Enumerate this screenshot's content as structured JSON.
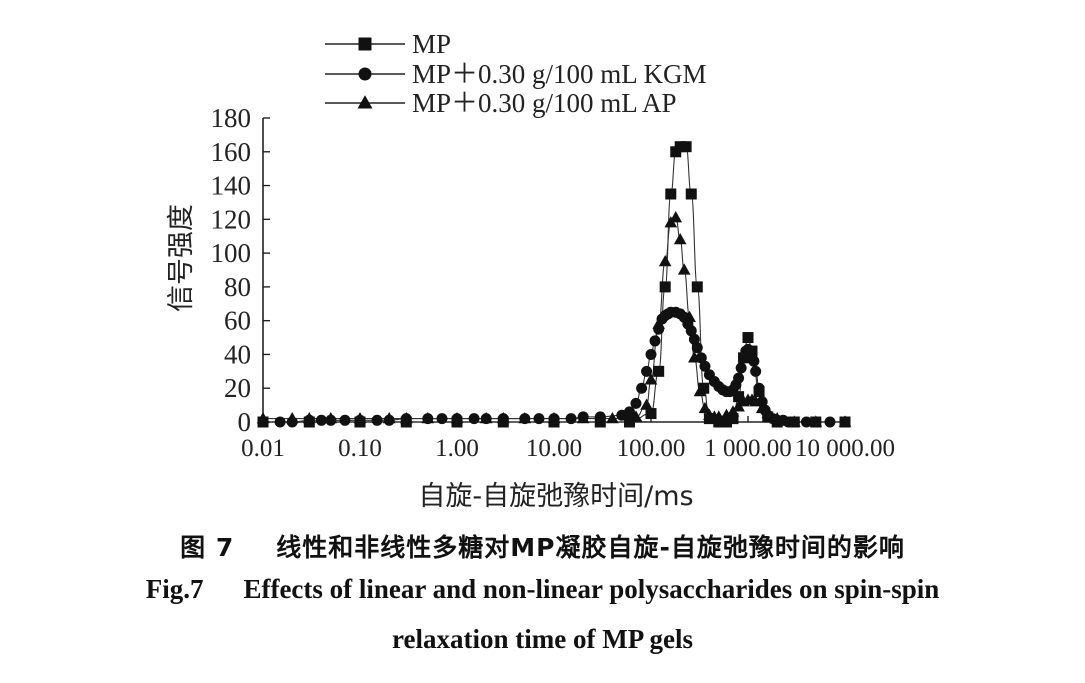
{
  "chart_data": {
    "type": "line",
    "x_scale": "log",
    "xlabel": "自旋-自旋弛豫时间/ms",
    "ylabel": "信号强度",
    "xlim": [
      0.01,
      10000
    ],
    "ylim": [
      0,
      180
    ],
    "x_tick_values": [
      0.01,
      0.1,
      1,
      10,
      100,
      1000,
      10000
    ],
    "x_tick_labels": [
      "0.01",
      "0.10",
      "1.00",
      "10.00",
      "100.00",
      "1 000.00",
      "10 000.00"
    ],
    "y_ticks": [
      0,
      20,
      40,
      60,
      80,
      100,
      120,
      140,
      160,
      180
    ],
    "legend_position": "top",
    "series": [
      {
        "name": "MP",
        "marker": "square",
        "x": [
          0.01,
          0.03,
          0.1,
          0.3,
          1,
          3,
          10,
          30,
          60,
          100,
          120,
          140,
          160,
          180,
          200,
          230,
          260,
          300,
          350,
          400,
          500,
          600,
          700,
          800,
          900,
          1000,
          1100,
          1300,
          1600,
          2000,
          3000,
          5000,
          10000
        ],
        "y": [
          0,
          0,
          0,
          0,
          0,
          0,
          0,
          0,
          0,
          5,
          30,
          80,
          135,
          160,
          163,
          163,
          135,
          80,
          20,
          2,
          0,
          0,
          2,
          15,
          38,
          50,
          42,
          18,
          3,
          0,
          0,
          0,
          0
        ]
      },
      {
        "name": "MP＋0.30 g/100 mL KGM",
        "marker": "circle",
        "x": [
          0.01,
          0.015,
          0.02,
          0.03,
          0.04,
          0.05,
          0.07,
          0.1,
          0.15,
          0.2,
          0.3,
          0.5,
          0.7,
          1,
          1.5,
          2,
          3,
          5,
          7,
          10,
          15,
          20,
          30,
          50,
          60,
          70,
          80,
          90,
          100,
          110,
          120,
          130,
          140,
          150,
          160,
          180,
          200,
          220,
          240,
          260,
          280,
          300,
          330,
          360,
          400,
          450,
          500,
          550,
          600,
          650,
          700,
          750,
          800,
          850,
          900,
          950,
          1000,
          1050,
          1100,
          1150,
          1200,
          1300,
          1400,
          1500,
          1600,
          1800,
          2000,
          2300,
          2600,
          3000,
          4000,
          5000,
          7000,
          10000
        ],
        "y": [
          0,
          0,
          0,
          1,
          1,
          1,
          1,
          1,
          1,
          1,
          2,
          2,
          2,
          2,
          2,
          2,
          2,
          2,
          2,
          2,
          2,
          3,
          3,
          4,
          6,
          11,
          20,
          30,
          40,
          48,
          55,
          61,
          63,
          64,
          65,
          65,
          64,
          62,
          58,
          54,
          49,
          44,
          38,
          33,
          28,
          24,
          21,
          19,
          18,
          18,
          19,
          22,
          26,
          32,
          38,
          42,
          43,
          42,
          40,
          36,
          30,
          20,
          12,
          7,
          4,
          2,
          1,
          1,
          0,
          0,
          0,
          0,
          0,
          0
        ]
      },
      {
        "name": "MP＋0.30 g/100 mL AP",
        "marker": "triangle",
        "x": [
          0.01,
          0.02,
          0.03,
          0.05,
          0.1,
          0.2,
          0.3,
          0.5,
          1,
          2,
          3,
          5,
          10,
          20,
          40,
          70,
          90,
          100,
          120,
          140,
          160,
          180,
          200,
          220,
          250,
          280,
          320,
          360,
          400,
          450,
          500,
          600,
          700,
          800,
          900,
          1000,
          1100,
          1200,
          1400,
          1600,
          2000,
          3000,
          5000,
          10000
        ],
        "y": [
          2,
          2,
          2,
          2,
          2,
          2,
          2,
          2,
          2,
          2,
          2,
          2,
          2,
          2,
          2,
          3,
          10,
          25,
          58,
          95,
          118,
          121,
          108,
          90,
          62,
          38,
          18,
          8,
          4,
          3,
          3,
          4,
          6,
          9,
          12,
          13,
          13,
          12,
          8,
          5,
          2,
          0,
          0,
          0
        ]
      }
    ]
  },
  "caption": {
    "cn_num": "图 7",
    "cn_text": "线性和非线性多糖对MP凝胶自旋-自旋弛豫时间的影响",
    "en_num": "Fig.7",
    "en_line1": "Effects of linear and non-linear polysaccharides on spin-spin",
    "en_line2": "relaxation time of MP gels"
  }
}
